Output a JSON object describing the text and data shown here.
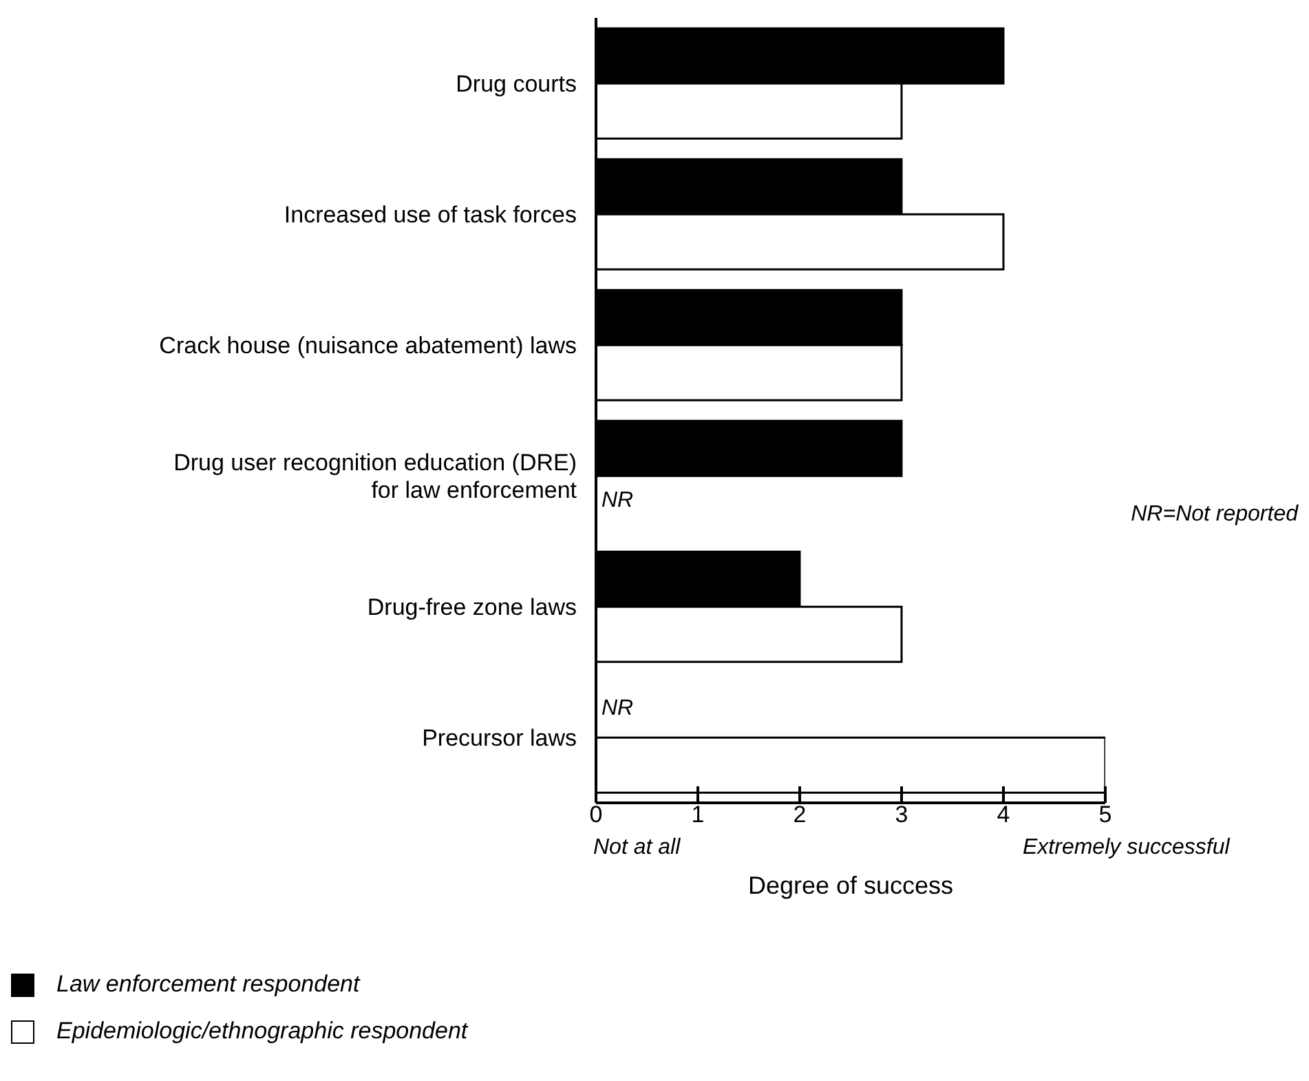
{
  "chart_data": {
    "type": "bar",
    "orientation": "horizontal",
    "xlabel": "Degree of success",
    "categories": [
      "Drug courts",
      "Increased use of task forces",
      "Crack house (nuisance abatement) laws",
      "Drug user recognition education (DRE)\nfor law enforcement",
      "Drug-free zone laws",
      "Precursor laws"
    ],
    "series": [
      {
        "name": "Law enforcement respondent",
        "color": "#000000",
        "values": [
          4,
          3,
          3,
          3,
          2,
          null
        ]
      },
      {
        "name": "Epidemiologic/ethnographic respondent",
        "color": "#ffffff",
        "values": [
          3,
          4,
          3,
          null,
          3,
          5
        ]
      }
    ],
    "xlim": [
      0,
      5
    ],
    "xticks": [
      0,
      1,
      2,
      3,
      4,
      5
    ],
    "legend": "bottom left",
    "annotations": [
      "Not at all",
      "Extremely successful",
      "NR=Not reported",
      {
        "text": "NR",
        "x": 0,
        "y": "Drug user recognition education (DRE)\nfor law enforcement"
      },
      {
        "text": "NR",
        "x": 0,
        "y": "Precursor laws"
      }
    ]
  }
}
